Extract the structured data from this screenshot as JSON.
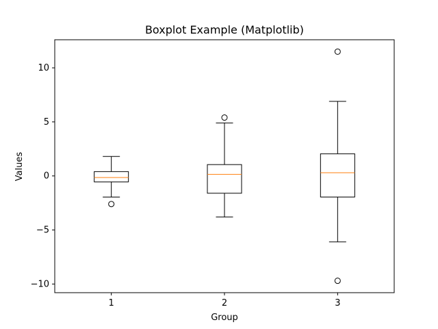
{
  "chart_data": {
    "type": "box",
    "title": "Boxplot Example (Matplotlib)",
    "xlabel": "Group",
    "ylabel": "Values",
    "categories": [
      "1",
      "2",
      "3"
    ],
    "ylim": [
      -10.8,
      12.6
    ],
    "y_ticks": [
      -10,
      -5,
      0,
      5,
      10
    ],
    "y_tick_labels": [
      "−10",
      "−5",
      "0",
      "5",
      "10"
    ],
    "grid": false,
    "box_color": "#000000",
    "median_color": "#ff7f0e",
    "boxes": [
      {
        "label": "1",
        "whisker_low": -1.95,
        "q1": -0.55,
        "median": -0.15,
        "q3": 0.4,
        "whisker_high": 1.8,
        "fliers": [
          -2.6
        ]
      },
      {
        "label": "2",
        "whisker_low": -3.8,
        "q1": -1.6,
        "median": 0.15,
        "q3": 1.05,
        "whisker_high": 4.9,
        "fliers": [
          5.4
        ]
      },
      {
        "label": "3",
        "whisker_low": -6.1,
        "q1": -1.95,
        "median": 0.3,
        "q3": 2.05,
        "whisker_high": 6.9,
        "fliers": [
          11.5,
          -9.7
        ]
      }
    ]
  }
}
